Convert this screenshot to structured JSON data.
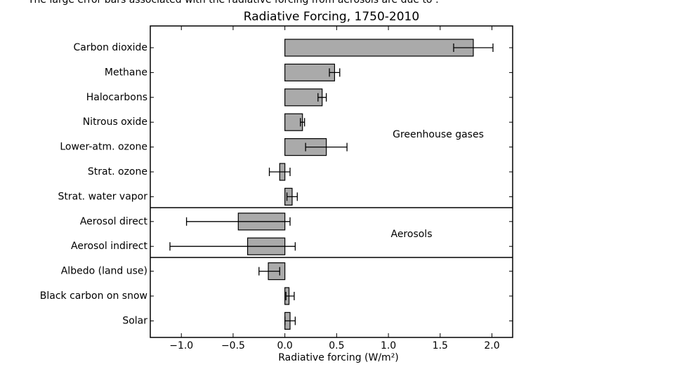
{
  "question": "The large error bars associated with the radiative forcing from aerosols are due to :",
  "chart_data": {
    "type": "hbar_error",
    "title": "Radiative Forcing, 1750-2010",
    "x_label": "Radiative forcing (W/m²)",
    "categories": [
      "Carbon dioxide",
      "Methane",
      "Halocarbons",
      "Nitrous oxide",
      "Lower-atm. ozone",
      "Strat. ozone",
      "Strat. water vapor",
      "Aerosol direct",
      "Aerosol indirect",
      "Albedo (land use)",
      "Black carbon on snow",
      "Solar"
    ],
    "values": [
      1.82,
      0.48,
      0.36,
      0.17,
      0.4,
      -0.05,
      0.07,
      -0.45,
      -0.36,
      -0.16,
      0.04,
      0.05
    ],
    "error_low": [
      0.19,
      0.05,
      0.04,
      0.02,
      0.2,
      0.1,
      0.05,
      0.5,
      0.75,
      0.09,
      0.03,
      0.05
    ],
    "error_high": [
      0.19,
      0.05,
      0.04,
      0.02,
      0.2,
      0.1,
      0.05,
      0.5,
      0.46,
      0.11,
      0.05,
      0.05
    ],
    "color": "#aaaaaa",
    "annotations": [
      "Greenhouse gases",
      "Aerosols"
    ],
    "xlim": [
      -1.3,
      2.2
    ],
    "xticks": [
      {
        "value": -1.0,
        "label": "−1.0"
      },
      {
        "value": -0.5,
        "label": "−0.5"
      },
      {
        "value": 0.0,
        "label": "0.0"
      },
      {
        "value": 0.5,
        "label": "0.5"
      },
      {
        "value": 1.0,
        "label": "1.0"
      },
      {
        "value": 1.5,
        "label": "1.5"
      },
      {
        "value": 2.0,
        "label": "2.0"
      }
    ]
  }
}
